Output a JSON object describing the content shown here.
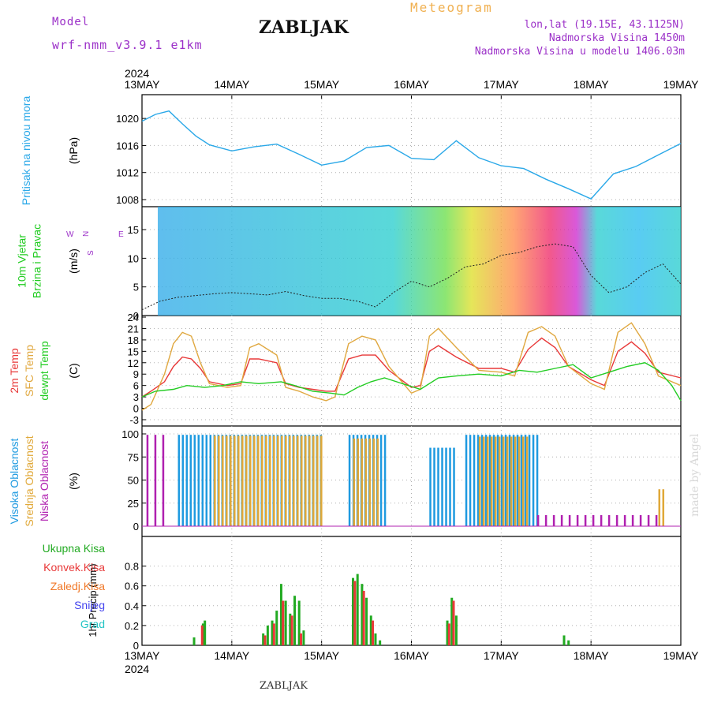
{
  "header": {
    "model_label": "Model",
    "model_name": "wrf-nmm_v3.9.1 e1km",
    "title": "ZABLJAK",
    "meteogram": "Meteogram",
    "lonlat": "lon,lat (19.15E, 43.1125N)",
    "elevation": "Nadmorska Visina 1450m",
    "model_elevation": "Nadmorska Visina u modelu 1406.03m"
  },
  "footer": {
    "station": "ZABLJAK",
    "watermark": "made by Angel"
  },
  "chart_data": {
    "type": "meteogram",
    "year": "2024",
    "x_ticks": [
      "13MAY",
      "14MAY",
      "15MAY",
      "16MAY",
      "17MAY",
      "18MAY",
      "19MAY"
    ],
    "colors": {
      "pressure": "#2aa8e8",
      "temp2m": "#e83838",
      "sfc": "#e0a840",
      "dewpt": "#22cc22",
      "wind_label": "#22cc22",
      "cloud_high": "#1e9ae0",
      "cloud_mid": "#e0a838",
      "cloud_low": "#b020b0",
      "prec_total": "#22aa22",
      "prec_conv": "#e83838",
      "prec_frozen": "#f07828",
      "snow": "#4444ee",
      "hail": "#22c4c4"
    },
    "panels": [
      {
        "id": "pressure",
        "ylabels": [
          "Pritisak na nivou mora"
        ],
        "unit": "(hPa)",
        "ylim": [
          1008,
          1022
        ],
        "yticks": [
          1008,
          1012,
          1016,
          1020
        ],
        "series": [
          {
            "key": "pressure",
            "t": [
              0,
              0.15,
              0.3,
              0.45,
              0.6,
              0.75,
              1.0,
              1.25,
              1.5,
              1.75,
              2.0,
              2.25,
              2.5,
              2.75,
              3.0,
              3.25,
              3.5,
              3.75,
              4.0,
              4.25,
              4.5,
              4.75,
              5.0,
              5.25,
              5.5,
              5.75,
              6.0
            ],
            "v": [
              1019.6,
              1020.6,
              1021.1,
              1019.2,
              1017.4,
              1016.1,
              1015.2,
              1015.8,
              1016.2,
              1014.7,
              1013.1,
              1013.7,
              1015.7,
              1016.0,
              1014.1,
              1013.9,
              1016.7,
              1014.2,
              1013.0,
              1012.6,
              1011.0,
              1009.6,
              1008.1,
              1011.8,
              1012.9,
              1014.6,
              1016.3
            ]
          }
        ]
      },
      {
        "id": "wind",
        "ylabels": [
          "10m Vjetar",
          "Brzina i Pravac"
        ],
        "unit": "(m/s)",
        "ylim": [
          0,
          19
        ],
        "yticks": [
          0,
          5,
          10,
          15
        ],
        "direction_legend": [
          "N",
          "W",
          "E",
          "S"
        ],
        "series": [
          {
            "key": "wind",
            "t": [
              0,
              0.2,
              0.4,
              0.6,
              0.8,
              1.0,
              1.2,
              1.4,
              1.6,
              1.8,
              2.0,
              2.2,
              2.4,
              2.6,
              2.8,
              3.0,
              3.2,
              3.4,
              3.6,
              3.8,
              4.0,
              4.2,
              4.4,
              4.6,
              4.8,
              5.0,
              5.2,
              5.4,
              5.6,
              5.8,
              6.0
            ],
            "v": [
              1.0,
              2.5,
              3.2,
              3.5,
              3.8,
              4.0,
              3.8,
              3.6,
              4.2,
              3.5,
              3.0,
              3.0,
              2.5,
              1.5,
              4.0,
              6.0,
              5.0,
              6.5,
              8.5,
              9.0,
              10.5,
              11.0,
              12.0,
              12.5,
              12.0,
              7.0,
              4.0,
              5.0,
              7.5,
              9.0,
              5.5
            ]
          }
        ]
      },
      {
        "id": "temp",
        "ylabels": [
          "2m Temp",
          "SFC Temp",
          "dewpt Temp"
        ],
        "unit": "(C)",
        "ylim": [
          -3,
          24
        ],
        "yticks": [
          -3,
          0,
          3,
          6,
          9,
          12,
          15,
          18,
          21,
          24
        ],
        "series": [
          {
            "key": "temp2m",
            "t": [
              0,
              0.1,
              0.25,
              0.35,
              0.45,
              0.55,
              0.65,
              0.75,
              0.95,
              1.1,
              1.2,
              1.3,
              1.5,
              1.6,
              1.75,
              1.9,
              2.05,
              2.15,
              2.3,
              2.45,
              2.6,
              2.75,
              3.0,
              3.1,
              3.2,
              3.3,
              3.5,
              3.75,
              4.0,
              4.15,
              4.3,
              4.45,
              4.6,
              4.75,
              5.0,
              5.15,
              5.3,
              5.45,
              5.6,
              5.75,
              6.0
            ],
            "v": [
              3,
              4.5,
              7,
              11,
              13.5,
              13,
              10.5,
              7,
              6,
              6.5,
              13,
              13,
              12,
              6.5,
              5.5,
              5,
              4.5,
              4.5,
              13,
              14,
              14,
              10,
              5.5,
              6,
              15,
              16.5,
              13.5,
              10.5,
              10.5,
              9.5,
              15.5,
              18.5,
              16,
              11,
              7.5,
              6,
              15,
              17.5,
              14.5,
              9.5,
              8
            ]
          },
          {
            "key": "sfc",
            "t": [
              0,
              0.1,
              0.25,
              0.35,
              0.45,
              0.55,
              0.65,
              0.75,
              0.95,
              1.1,
              1.2,
              1.3,
              1.5,
              1.6,
              1.75,
              1.9,
              2.05,
              2.15,
              2.3,
              2.45,
              2.6,
              2.75,
              3.0,
              3.1,
              3.2,
              3.3,
              3.5,
              3.75,
              4.0,
              4.15,
              4.3,
              4.45,
              4.6,
              4.75,
              5.0,
              5.15,
              5.3,
              5.45,
              5.6,
              5.75,
              6.0
            ],
            "v": [
              -0.5,
              1,
              9,
              17,
              20,
              19,
              12,
              6.5,
              5.5,
              6,
              16,
              17,
              14,
              5.5,
              4.5,
              3,
              2,
              3,
              17,
              19,
              18,
              11,
              4,
              5,
              19,
              21,
              16,
              10,
              9.5,
              8.5,
              20,
              21.5,
              19,
              11,
              6.5,
              5,
              20,
              22.5,
              17,
              8.5,
              6
            ]
          },
          {
            "key": "dewpt",
            "t": [
              0,
              0.15,
              0.35,
              0.5,
              0.7,
              0.9,
              1.1,
              1.3,
              1.55,
              1.7,
              1.9,
              2.1,
              2.25,
              2.4,
              2.55,
              2.7,
              2.9,
              3.1,
              3.3,
              3.5,
              3.75,
              4.0,
              4.2,
              4.4,
              4.6,
              4.8,
              5.0,
              5.2,
              5.4,
              5.6,
              5.75,
              5.9,
              6.0
            ],
            "v": [
              3,
              4.5,
              5,
              6,
              5.5,
              6,
              7,
              6.5,
              7,
              6,
              4.5,
              4,
              3.5,
              5.5,
              7,
              8,
              6.5,
              5,
              8,
              8.5,
              9,
              8.5,
              10,
              9.5,
              10.5,
              11.5,
              8,
              9.5,
              11,
              12,
              10,
              6,
              2
            ]
          }
        ]
      },
      {
        "id": "cloud",
        "ylabels": [
          "Visoka Oblacnost",
          "Srednja Oblacnost",
          "Niska Oblacnost"
        ],
        "unit": "(%)",
        "ylim": [
          0,
          100
        ],
        "yticks": [
          0,
          25,
          50,
          75,
          100
        ],
        "bars": [
          {
            "key": "cloud_high",
            "start": 0.4,
            "end": 2.0,
            "value": 99
          },
          {
            "key": "cloud_high",
            "start": 2.3,
            "end": 2.7,
            "value": 99
          },
          {
            "key": "cloud_high",
            "start": 3.2,
            "end": 3.5,
            "value": 85
          },
          {
            "key": "cloud_high",
            "start": 3.6,
            "end": 4.4,
            "value": 99
          },
          {
            "key": "cloud_mid",
            "start": 0.8,
            "end": 2.0,
            "value": 98
          },
          {
            "key": "cloud_mid",
            "start": 2.35,
            "end": 2.65,
            "value": 95
          },
          {
            "key": "cloud_mid",
            "start": 3.75,
            "end": 4.3,
            "value": 97
          },
          {
            "key": "cloud_mid",
            "start": 5.75,
            "end": 5.8,
            "value": 40
          },
          {
            "key": "cloud_low",
            "start": 0.05,
            "end": 0.3,
            "value": 99
          },
          {
            "key": "cloud_low",
            "start": 4.4,
            "end": 5.8,
            "value": 12
          }
        ]
      },
      {
        "id": "precip",
        "ylabels": [
          "1hr Precip (mm)"
        ],
        "unit": "",
        "ylim": [
          0,
          0.9
        ],
        "yticks": [
          0,
          0.2,
          0.4,
          0.6,
          0.8
        ],
        "legend": [
          {
            "key": "prec_total",
            "label": "Ukupna Kisa"
          },
          {
            "key": "prec_conv",
            "label": "Konvek.Kisa"
          },
          {
            "key": "prec_frozen",
            "label": "Zaledj.Kisa"
          },
          {
            "key": "snow",
            "label": "Snijeg"
          },
          {
            "key": "hail",
            "label": "Grad"
          }
        ],
        "bars": [
          {
            "key": "prec_total",
            "t": [
              0.58,
              0.68,
              0.7,
              1.35,
              1.4,
              1.45,
              1.5,
              1.55,
              1.6,
              1.65,
              1.7,
              1.75,
              1.8,
              2.35,
              2.4,
              2.45,
              2.5,
              2.55,
              2.6,
              2.65,
              3.4,
              3.45,
              3.5,
              4.7,
              4.75
            ],
            "v": [
              0.08,
              0.22,
              0.25,
              0.12,
              0.2,
              0.25,
              0.35,
              0.62,
              0.45,
              0.32,
              0.5,
              0.45,
              0.15,
              0.68,
              0.72,
              0.62,
              0.48,
              0.3,
              0.12,
              0.05,
              0.25,
              0.48,
              0.3,
              0.1,
              0.05
            ]
          },
          {
            "key": "prec_conv",
            "t": [
              0.67,
              1.37,
              1.47,
              1.57,
              1.67,
              1.77,
              2.37,
              2.47,
              2.57,
              3.42,
              3.47
            ],
            "v": [
              0.2,
              0.1,
              0.22,
              0.45,
              0.3,
              0.12,
              0.65,
              0.55,
              0.25,
              0.22,
              0.45
            ]
          }
        ]
      }
    ]
  }
}
